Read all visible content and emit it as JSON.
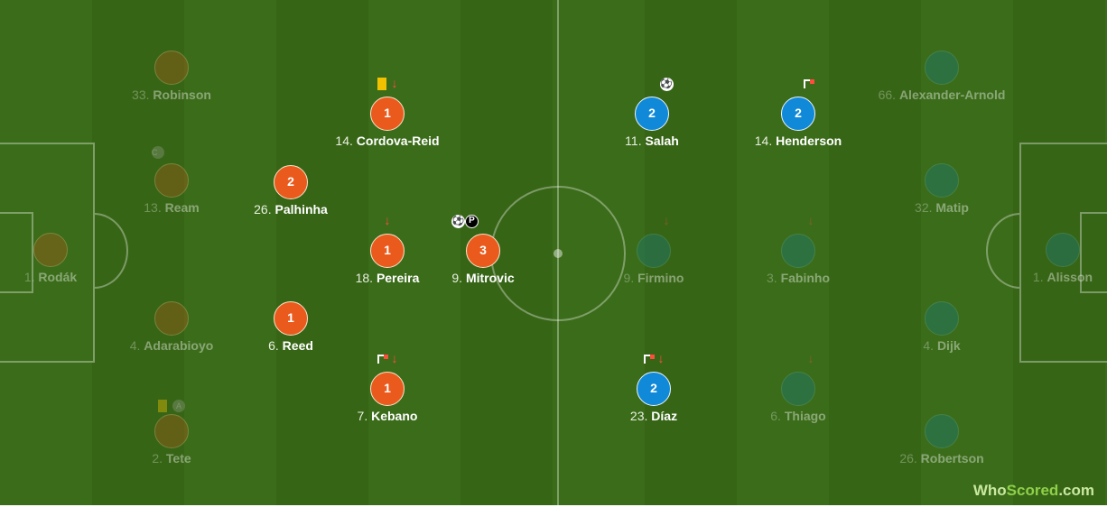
{
  "colors": {
    "home": "#ea5a1c",
    "away": "#1089d8",
    "pitch": "#3b6c1a",
    "yellow_card": "#f2c200"
  },
  "home": [
    {
      "num": "1.",
      "name": "Rodák"
    },
    {
      "num": "33.",
      "name": "Robinson"
    },
    {
      "num": "13.",
      "name": "Ream",
      "badge": "C"
    },
    {
      "num": "4.",
      "name": "Adarabioyo"
    },
    {
      "num": "2.",
      "name": "Tete",
      "badge": "A"
    },
    {
      "num": "26.",
      "name": "Palhinha",
      "rating": "2"
    },
    {
      "num": "6.",
      "name": "Reed",
      "rating": "1"
    },
    {
      "num": "14.",
      "name": "Cordova-Reid",
      "rating": "1"
    },
    {
      "num": "18.",
      "name": "Pereira",
      "rating": "1"
    },
    {
      "num": "7.",
      "name": "Kebano",
      "rating": "1"
    },
    {
      "num": "9.",
      "name": "Mitrovic",
      "rating": "3",
      "penalty": "P"
    }
  ],
  "away": [
    {
      "num": "11.",
      "name": "Salah",
      "rating": "2"
    },
    {
      "num": "14.",
      "name": "Henderson",
      "rating": "2"
    },
    {
      "num": "66.",
      "name": "Alexander-Arnold"
    },
    {
      "num": "9.",
      "name": "Firmino"
    },
    {
      "num": "3.",
      "name": "Fabinho"
    },
    {
      "num": "32.",
      "name": "Matip"
    },
    {
      "num": "1.",
      "name": "Alisson"
    },
    {
      "num": "23.",
      "name": "Díaz",
      "rating": "2"
    },
    {
      "num": "6.",
      "name": "Thiago"
    },
    {
      "num": "4.",
      "name": "Dijk"
    },
    {
      "num": "26.",
      "name": "Robertson"
    }
  ],
  "icons": {
    "arrow": "↓",
    "ball": "⚽"
  },
  "branding": {
    "logo_a": "Who",
    "logo_b": "Scored",
    ".com": ".com",
    "logo_c": ".com"
  }
}
